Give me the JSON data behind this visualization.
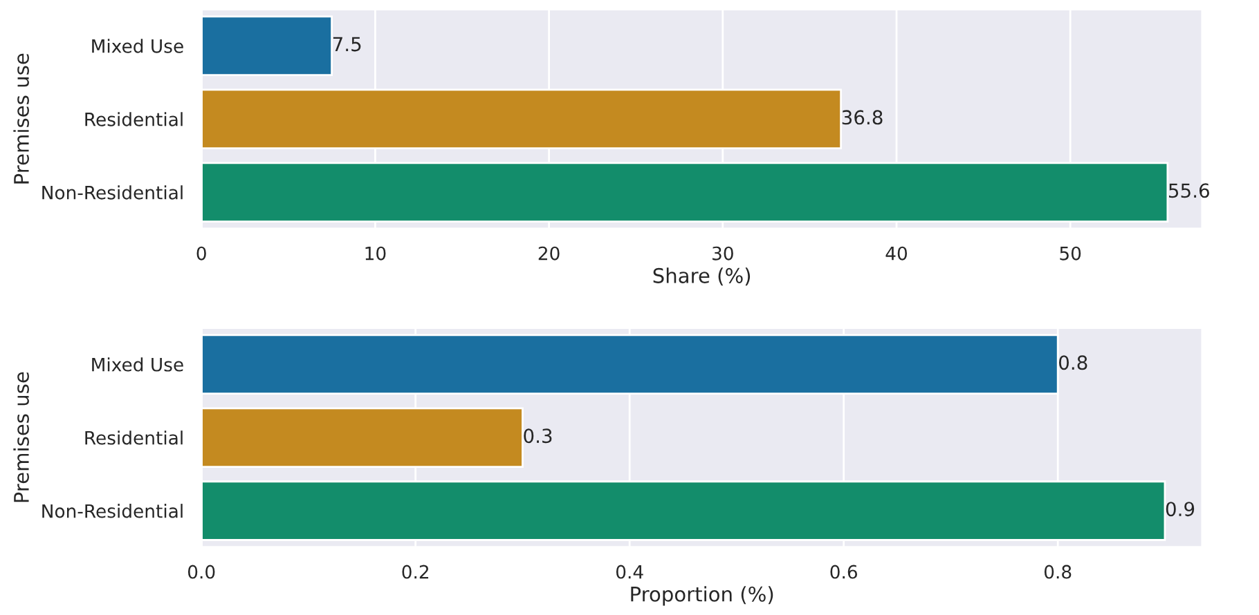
{
  "chart_data": [
    {
      "type": "bar",
      "orientation": "horizontal",
      "categories": [
        "Mixed Use",
        "Residential",
        "Non-Residential"
      ],
      "colors": [
        "#1a6fa0",
        "#c48a20",
        "#138d6b"
      ],
      "values": [
        7.5,
        36.8,
        55.6
      ],
      "data_labels": true,
      "xlabel": "Share (%)",
      "ylabel": "Premises use",
      "xlim": [
        0,
        57.6
      ],
      "xticks": [
        0,
        10,
        20,
        30,
        40,
        50
      ],
      "grid": "x"
    },
    {
      "type": "bar",
      "orientation": "horizontal",
      "categories": [
        "Mixed Use",
        "Residential",
        "Non-Residential"
      ],
      "colors": [
        "#1a6fa0",
        "#c48a20",
        "#138d6b"
      ],
      "values": [
        0.8,
        0.3,
        0.9
      ],
      "data_labels": true,
      "xlabel": "Proportion (%)",
      "ylabel": "Premises use",
      "xlim": [
        0,
        0.935
      ],
      "xticks": [
        {
          "value": 0,
          "label": "0.0"
        },
        0.2,
        0.4,
        0.6,
        0.8
      ],
      "grid": "x"
    }
  ]
}
